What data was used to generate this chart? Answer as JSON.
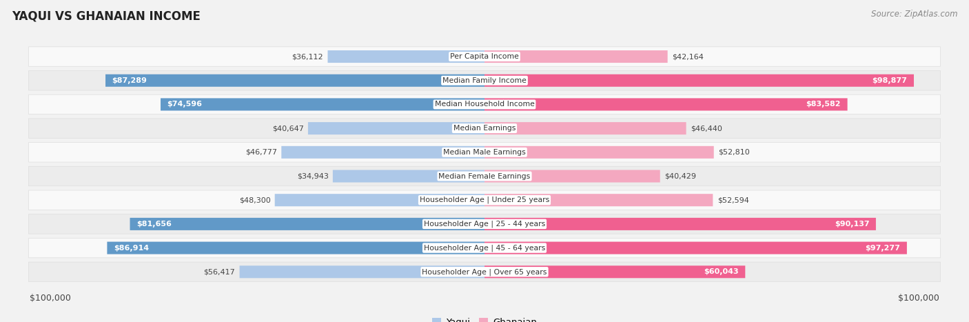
{
  "title": "YAQUI VS GHANAIAN INCOME",
  "source": "Source: ZipAtlas.com",
  "categories": [
    "Per Capita Income",
    "Median Family Income",
    "Median Household Income",
    "Median Earnings",
    "Median Male Earnings",
    "Median Female Earnings",
    "Householder Age | Under 25 years",
    "Householder Age | 25 - 44 years",
    "Householder Age | 45 - 64 years",
    "Householder Age | Over 65 years"
  ],
  "yaqui_values": [
    36112,
    87289,
    74596,
    40647,
    46777,
    34943,
    48300,
    81656,
    86914,
    56417
  ],
  "ghanaian_values": [
    42164,
    98877,
    83582,
    46440,
    52810,
    40429,
    52594,
    90137,
    97277,
    60043
  ],
  "yaqui_light_color": "#adc8e8",
  "yaqui_dark_color": "#6199c8",
  "ghanaian_light_color": "#f4a8c0",
  "ghanaian_dark_color": "#f06090",
  "dark_threshold": 60000,
  "max_value": 100000,
  "bg_color": "#f2f2f2",
  "row_bg_even": "#f9f9f9",
  "row_bg_odd": "#ececec",
  "legend_yaqui": "Yaqui",
  "legend_ghanaian": "Ghanaian"
}
